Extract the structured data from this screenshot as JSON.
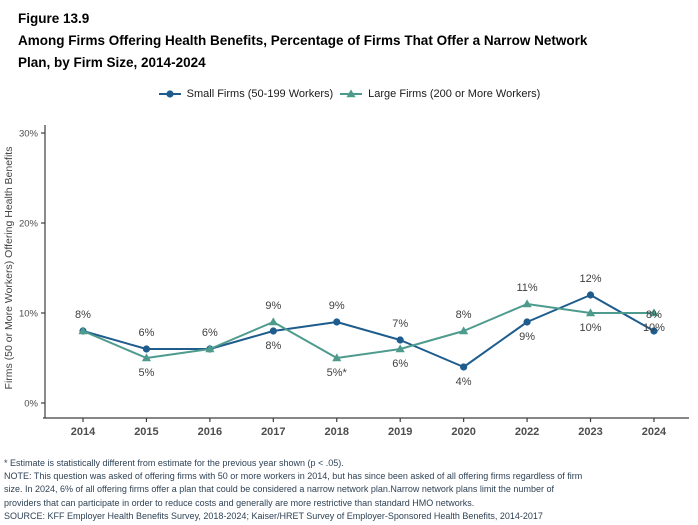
{
  "header": {
    "figure_label": "Figure 13.9",
    "title_line1": "Among Firms Offering Health Benefits, Percentage of Firms That Offer a Narrow Network",
    "title_line2": "Plan, by Firm Size, 2014-2024"
  },
  "colors": {
    "small_firms_line": "#1D5C8D",
    "large_firms_line": "#4E9B8E",
    "axis_line": "#3D3D3D",
    "axis_text": "#4D4D4D",
    "data_label_text": "#404040",
    "footnote_text": "#2F4255",
    "title_text": "#000000"
  },
  "chart_data": {
    "type": "line",
    "title": "Among Firms Offering Health Benefits, Percentage of Firms That Offer a Narrow Network Plan, by Firm Size, 2014-2024",
    "categories": [
      "2014",
      "2015",
      "2016",
      "2017",
      "2018",
      "2019",
      "2020",
      "2022",
      "2023",
      "2024"
    ],
    "series": [
      {
        "name": "Small Firms (50-199 Workers)",
        "id": "small-firms",
        "color": "#1D5C8D",
        "marker": "circle",
        "values": [
          8,
          6,
          6,
          8,
          9,
          7,
          4,
          9,
          12,
          8
        ],
        "labels": [
          "8%",
          "6%",
          "6%",
          "8%",
          "9%",
          "7%",
          "4%",
          "9%",
          "12%",
          "8%"
        ],
        "label_positions": [
          "above",
          "above",
          "above",
          "below",
          "above",
          "above",
          "below",
          "below",
          "above",
          "above"
        ]
      },
      {
        "name": "Large Firms (200 or More Workers)",
        "id": "large-firms",
        "color": "#4E9B8E",
        "marker": "triangle",
        "values": [
          8,
          5,
          6,
          9,
          5,
          6,
          8,
          11,
          10,
          10
        ],
        "labels": [
          null,
          "5%",
          null,
          "9%",
          "5%*",
          "6%",
          "8%",
          "11%",
          "10%",
          "10%"
        ],
        "label_positions": [
          null,
          "below",
          null,
          "above",
          "below",
          "below",
          "above",
          "above",
          "below",
          "below"
        ]
      }
    ],
    "ylabel": "Firms (50 or More Workers) Offering Health Benefits",
    "ylim": [
      0,
      30
    ],
    "yticks": [
      {
        "value": 0,
        "label": "0%"
      },
      {
        "value": 10,
        "label": "10%"
      },
      {
        "value": 20,
        "label": "20%"
      },
      {
        "value": 30,
        "label": "30%"
      }
    ],
    "grid": false,
    "legend_position": "top"
  },
  "footnotes": {
    "lines": [
      "* Estimate is statistically different from estimate for the previous year shown (p < .05).",
      "NOTE: This question was asked of offering firms with 50 or more workers in 2014, but has since been asked of all offering firms regardless of firm",
      "size. In 2024, 6% of all offering firms offer a plan that could be considered a narrow network plan.Narrow network plans limit the number of",
      "providers that can participate in order to reduce costs and generally are more restrictive than standard HMO networks.",
      "SOURCE: KFF Employer Health Benefits Survey, 2018-2024; Kaiser/HRET Survey of Employer-Sponsored Health Benefits, 2014-2017"
    ]
  }
}
